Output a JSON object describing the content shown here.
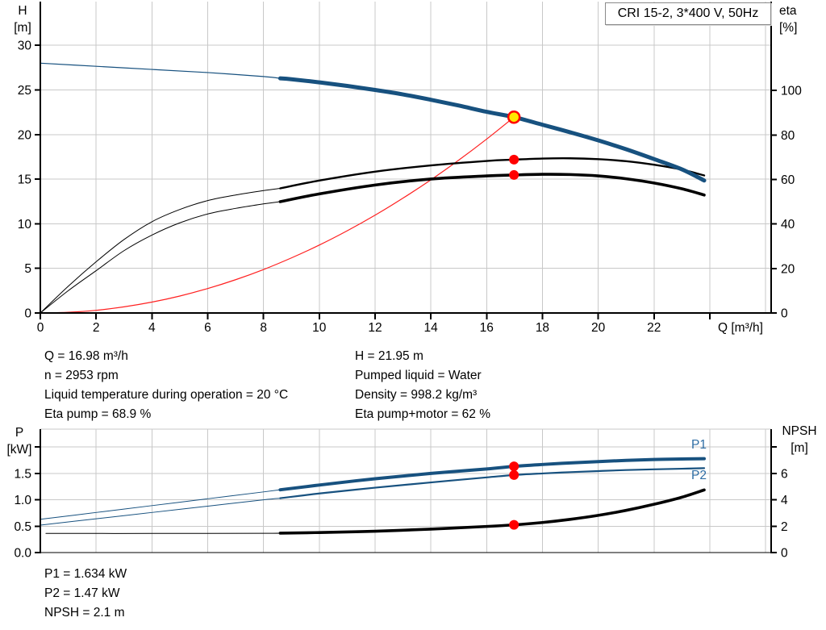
{
  "info_top_left": [
    "Q = 16.98 m³/h",
    "n = 2953 rpm",
    "Liquid temperature during operation = 20 °C",
    "Eta pump = 68.9 %"
  ],
  "info_top_right": [
    "H = 21.95 m",
    "Pumped liquid = Water",
    "Density = 998.2 kg/m³",
    "Eta pump+motor = 62 %"
  ],
  "info_bottom": [
    "P1 = 1.634 kW",
    "P2 = 1.47 kW",
    "NPSH = 2.1 m"
  ],
  "colors": {
    "curve_blue": "#17517f",
    "system_red": "#ff2020",
    "marker_red": "#ff0000",
    "duty_fill": "#ffe800",
    "label_blue": "#2e6da4",
    "grid": "#c8c8c8",
    "axis": "#000000"
  },
  "chart_data": [
    {
      "type": "line",
      "title": "CRI 15-2, 3*400 V, 50Hz",
      "x_axis": {
        "label": "Q [m³/h]",
        "min": 0,
        "max": 26.2,
        "grid_values": [
          2,
          4,
          6,
          8,
          10,
          12,
          14,
          16,
          18,
          20,
          22,
          24,
          26
        ],
        "ticks": [
          {
            "v": 0,
            "label": "0"
          },
          {
            "v": 2,
            "label": "2"
          },
          {
            "v": 4,
            "label": "4"
          },
          {
            "v": 6,
            "label": "6"
          },
          {
            "v": 8,
            "label": "8"
          },
          {
            "v": 10,
            "label": "10"
          },
          {
            "v": 12,
            "label": "12"
          },
          {
            "v": 14,
            "label": "14"
          },
          {
            "v": 16,
            "label": "16"
          },
          {
            "v": 18,
            "label": "18"
          },
          {
            "v": 20,
            "label": "20"
          },
          {
            "v": 22,
            "label": "22"
          },
          {
            "v": 24,
            "label": ""
          }
        ]
      },
      "y_left": {
        "label": "H",
        "unit": "[m]",
        "min": 0,
        "max": 34.9,
        "grid_values": [
          5,
          10,
          15,
          20,
          25,
          30
        ],
        "ticks": [
          {
            "v": 0,
            "label": "0"
          },
          {
            "v": 5,
            "label": "5"
          },
          {
            "v": 10,
            "label": "10"
          },
          {
            "v": 15,
            "label": "15"
          },
          {
            "v": 20,
            "label": "20"
          },
          {
            "v": 25,
            "label": "25"
          },
          {
            "v": 30,
            "label": "30"
          }
        ]
      },
      "y_right": {
        "label": "eta",
        "unit": "[%]",
        "min": 0,
        "max": 139.9,
        "ticks": [
          {
            "v": 0,
            "label": "0"
          },
          {
            "v": 20,
            "label": "20"
          },
          {
            "v": 40,
            "label": "40"
          },
          {
            "v": 60,
            "label": "60"
          },
          {
            "v": 80,
            "label": "80"
          },
          {
            "v": 100,
            "label": "100"
          }
        ]
      },
      "series": [
        {
          "name": "system-curve",
          "axis": "left",
          "color": "#ff2020",
          "width": 1.2,
          "points": [
            [
              0,
              0
            ],
            [
              1,
              0.08
            ],
            [
              2,
              0.3
            ],
            [
              3,
              0.69
            ],
            [
              4,
              1.22
            ],
            [
              5,
              1.9
            ],
            [
              6,
              2.74
            ],
            [
              7,
              3.73
            ],
            [
              8,
              4.87
            ],
            [
              9,
              6.17
            ],
            [
              10,
              7.61
            ],
            [
              11,
              9.21
            ],
            [
              12,
              10.96
            ],
            [
              13,
              12.87
            ],
            [
              14,
              14.92
            ],
            [
              15,
              17.13
            ],
            [
              16,
              19.49
            ],
            [
              16.98,
              21.95
            ]
          ]
        },
        {
          "name": "eta-pump-preliminary",
          "axis": "right",
          "color": "#000000",
          "width": 1,
          "points": [
            [
              0,
              0
            ],
            [
              1,
              12
            ],
            [
              2,
              23
            ],
            [
              3,
              33
            ],
            [
              4,
              41
            ],
            [
              5,
              46.5
            ],
            [
              6,
              50.5
            ],
            [
              7,
              53
            ],
            [
              8,
              55
            ],
            [
              8.6,
              56
            ]
          ]
        },
        {
          "name": "eta-pump-motor-preliminary",
          "axis": "right",
          "color": "#000000",
          "width": 1,
          "points": [
            [
              0,
              0
            ],
            [
              1,
              10
            ],
            [
              2,
              19
            ],
            [
              3,
              28
            ],
            [
              4,
              35
            ],
            [
              5,
              40.5
            ],
            [
              6,
              44.5
            ],
            [
              7,
              47
            ],
            [
              8,
              49
            ],
            [
              8.6,
              50
            ]
          ]
        },
        {
          "name": "eta-pump-curve",
          "axis": "right",
          "color": "#000000",
          "width": 2.4,
          "points": [
            [
              8.6,
              56
            ],
            [
              10,
              59.5
            ],
            [
              12,
              63.5
            ],
            [
              14,
              66.3
            ],
            [
              16,
              68.3
            ],
            [
              16.98,
              68.9
            ],
            [
              18,
              69.4
            ],
            [
              19,
              69.5
            ],
            [
              20,
              69.1
            ],
            [
              21,
              68.2
            ],
            [
              22,
              66.6
            ],
            [
              23,
              64.4
            ],
            [
              23.8,
              61.8
            ]
          ]
        },
        {
          "name": "eta-pump-motor-curve",
          "axis": "right",
          "color": "#000000",
          "width": 3.6,
          "points": [
            [
              8.6,
              50
            ],
            [
              10,
              53.5
            ],
            [
              12,
              57.5
            ],
            [
              14,
              60.2
            ],
            [
              16,
              61.6
            ],
            [
              16.98,
              62
            ],
            [
              18,
              62.3
            ],
            [
              19,
              62.2
            ],
            [
              20,
              61.6
            ],
            [
              21,
              60.3
            ],
            [
              22,
              58.4
            ],
            [
              23,
              55.8
            ],
            [
              23.8,
              53
            ]
          ]
        },
        {
          "name": "head-curve-preliminary",
          "axis": "left",
          "color": "#17517f",
          "width": 1.2,
          "points": [
            [
              0,
              28
            ],
            [
              2,
              27.65
            ],
            [
              4,
              27.3
            ],
            [
              6,
              26.95
            ],
            [
              8,
              26.5
            ],
            [
              8.6,
              26.3
            ]
          ]
        },
        {
          "name": "head-curve",
          "axis": "left",
          "color": "#17517f",
          "width": 5,
          "points": [
            [
              8.6,
              26.3
            ],
            [
              9,
              26.2
            ],
            [
              10,
              25.85
            ],
            [
              11,
              25.45
            ],
            [
              12,
              25.0
            ],
            [
              13,
              24.5
            ],
            [
              14,
              23.9
            ],
            [
              15,
              23.25
            ],
            [
              16,
              22.55
            ],
            [
              16.98,
              21.95
            ],
            [
              18,
              21.1
            ],
            [
              19,
              20.25
            ],
            [
              20,
              19.35
            ],
            [
              21,
              18.35
            ],
            [
              22,
              17.25
            ],
            [
              23,
              16.1
            ],
            [
              23.8,
              14.85
            ]
          ]
        }
      ],
      "markers": [
        {
          "name": "eta-pump-point",
          "axis": "right",
          "x": 16.98,
          "y": 68.9,
          "style": "dot"
        },
        {
          "name": "eta-pump-motor-point",
          "axis": "right",
          "x": 16.98,
          "y": 62,
          "style": "dot"
        },
        {
          "name": "duty-point",
          "axis": "left",
          "x": 16.98,
          "y": 21.95,
          "style": "duty"
        }
      ]
    },
    {
      "type": "line",
      "x_axis": {
        "label": "",
        "min": 0,
        "max": 26.2,
        "grid_values": [
          2,
          4,
          6,
          8,
          10,
          12,
          14,
          16,
          18,
          20,
          22,
          24,
          26
        ],
        "ticks": []
      },
      "y_left": {
        "label": "P",
        "unit": "[kW]",
        "min": 0,
        "max": 2.34,
        "grid_values": [
          0.5,
          1.0,
          1.5,
          2.0
        ],
        "ticks": [
          {
            "v": 0,
            "label": "0.0"
          },
          {
            "v": 0.5,
            "label": "0.5"
          },
          {
            "v": 1.0,
            "label": "1.0"
          },
          {
            "v": 1.5,
            "label": "1.5"
          },
          {
            "v": 2.0,
            "label": ""
          }
        ]
      },
      "y_right": {
        "label": "NPSH",
        "unit": "[m]",
        "min": 0,
        "max": 9.36,
        "ticks": [
          {
            "v": 0,
            "label": "0"
          },
          {
            "v": 2,
            "label": "2"
          },
          {
            "v": 4,
            "label": "4"
          },
          {
            "v": 6,
            "label": "6"
          },
          {
            "v": 8,
            "label": ""
          }
        ]
      },
      "series_labels": {
        "P1": "P1",
        "P2": "P2"
      },
      "series": [
        {
          "name": "p1-preliminary",
          "axis": "left",
          "color": "#17517f",
          "width": 1,
          "points": [
            [
              0,
              0.63
            ],
            [
              2,
              0.76
            ],
            [
              4,
              0.89
            ],
            [
              6,
              1.02
            ],
            [
              8,
              1.15
            ],
            [
              8.6,
              1.19
            ]
          ]
        },
        {
          "name": "p2-preliminary",
          "axis": "left",
          "color": "#17517f",
          "width": 1,
          "points": [
            [
              0,
              0.52
            ],
            [
              2,
              0.64
            ],
            [
              4,
              0.76
            ],
            [
              6,
              0.88
            ],
            [
              8,
              1.0
            ],
            [
              8.6,
              1.03
            ]
          ]
        },
        {
          "name": "p1-curve",
          "axis": "left",
          "color": "#17517f",
          "width": 4,
          "points": [
            [
              8.6,
              1.19
            ],
            [
              10,
              1.28
            ],
            [
              12,
              1.4
            ],
            [
              14,
              1.5
            ],
            [
              16,
              1.585
            ],
            [
              16.98,
              1.634
            ],
            [
              18,
              1.67
            ],
            [
              19,
              1.7
            ],
            [
              20,
              1.725
            ],
            [
              21,
              1.748
            ],
            [
              22,
              1.765
            ],
            [
              23,
              1.775
            ],
            [
              23.8,
              1.78
            ]
          ]
        },
        {
          "name": "p2-curve",
          "axis": "left",
          "color": "#17517f",
          "width": 2.2,
          "points": [
            [
              8.6,
              1.03
            ],
            [
              10,
              1.12
            ],
            [
              12,
              1.23
            ],
            [
              14,
              1.33
            ],
            [
              16,
              1.425
            ],
            [
              16.98,
              1.47
            ],
            [
              18,
              1.5
            ],
            [
              19,
              1.525
            ],
            [
              20,
              1.545
            ],
            [
              21,
              1.565
            ],
            [
              22,
              1.578
            ],
            [
              23,
              1.59
            ],
            [
              23.8,
              1.6
            ]
          ]
        },
        {
          "name": "npsh-preliminary",
          "axis": "right",
          "color": "#000000",
          "width": 1,
          "points": [
            [
              0.2,
              1.45
            ],
            [
              4,
              1.45
            ],
            [
              8,
              1.46
            ],
            [
              8.6,
              1.47
            ]
          ]
        },
        {
          "name": "npsh-curve",
          "axis": "right",
          "color": "#000000",
          "width": 3.6,
          "points": [
            [
              8.6,
              1.47
            ],
            [
              10,
              1.52
            ],
            [
              12,
              1.62
            ],
            [
              14,
              1.78
            ],
            [
              16,
              1.98
            ],
            [
              16.98,
              2.1
            ],
            [
              18,
              2.28
            ],
            [
              19,
              2.52
            ],
            [
              20,
              2.82
            ],
            [
              21,
              3.2
            ],
            [
              22,
              3.66
            ],
            [
              23,
              4.2
            ],
            [
              23.8,
              4.75
            ]
          ]
        }
      ],
      "markers": [
        {
          "name": "p1-point",
          "axis": "left",
          "x": 16.98,
          "y": 1.634,
          "style": "dot"
        },
        {
          "name": "p2-point",
          "axis": "left",
          "x": 16.98,
          "y": 1.47,
          "style": "dot"
        },
        {
          "name": "npsh-point",
          "axis": "right",
          "x": 16.98,
          "y": 2.1,
          "style": "dot"
        }
      ]
    }
  ]
}
